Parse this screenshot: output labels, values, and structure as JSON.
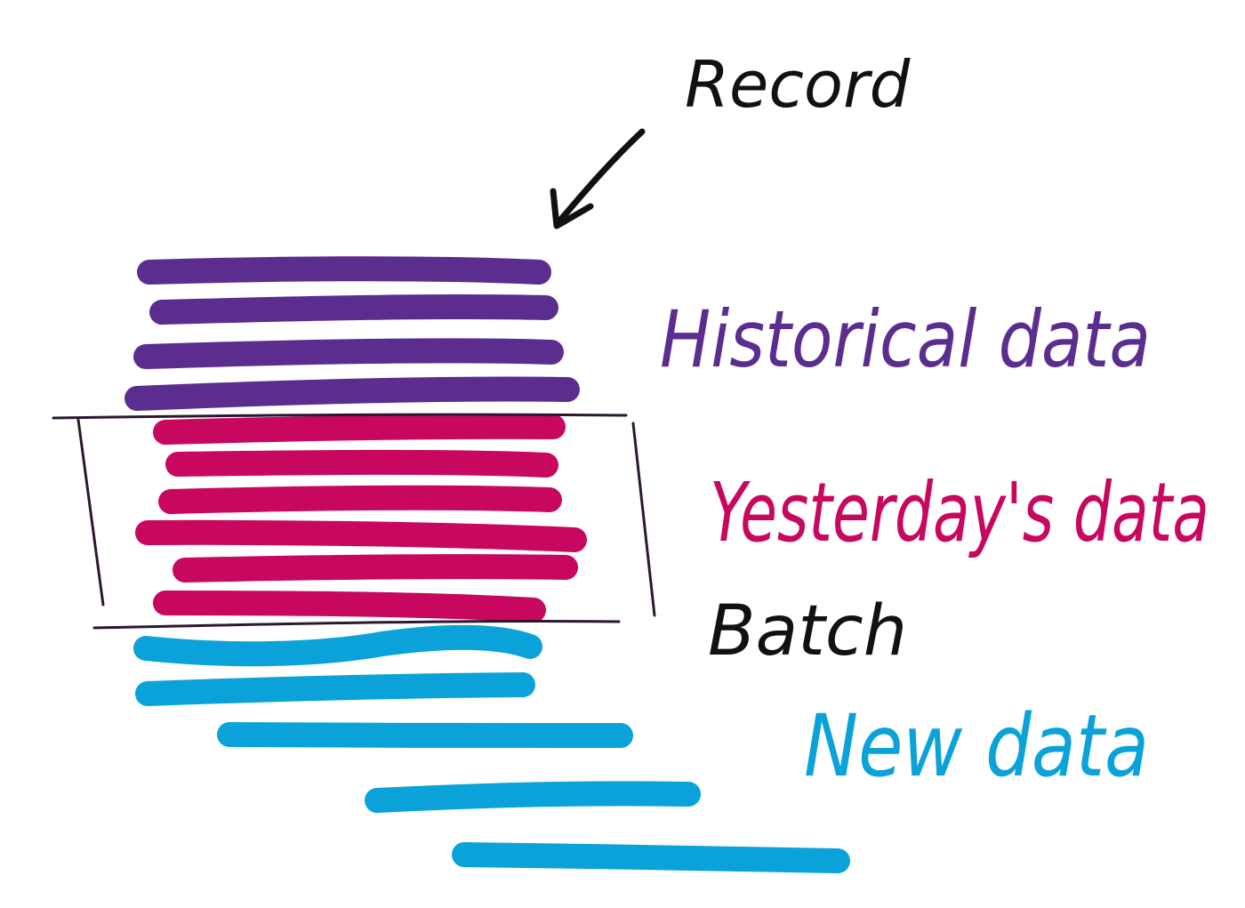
{
  "labels": {
    "record": "Record",
    "historical": "Historical data",
    "yesterday": "Yesterday's data",
    "batch": "Batch",
    "new": "New data"
  },
  "colors": {
    "historical": "#5b2d8f",
    "yesterday": "#c8075f",
    "new": "#0aa2d8",
    "ink": "#111111"
  },
  "groups": [
    {
      "name": "historical",
      "record_count": 4
    },
    {
      "name": "yesterday",
      "record_count": 6
    },
    {
      "name": "new",
      "record_count": 5
    }
  ]
}
